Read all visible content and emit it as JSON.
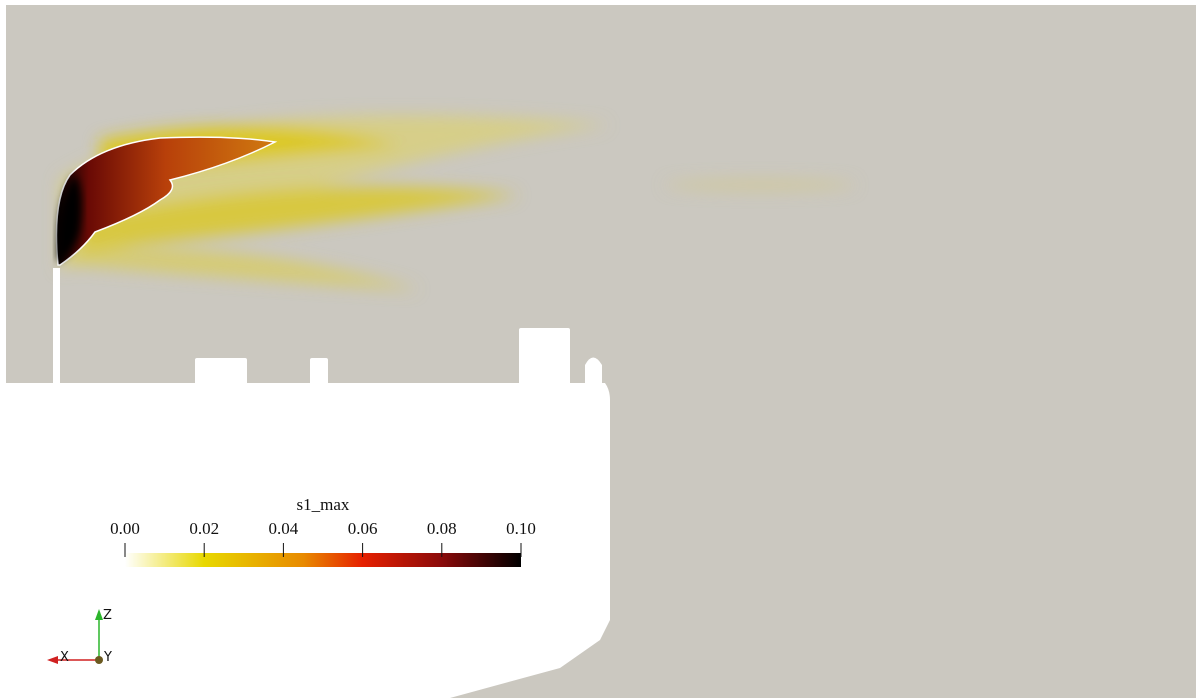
{
  "colorbar": {
    "title": "s1_max",
    "range": [
      0,
      0.1
    ],
    "ticks": [
      {
        "value": 0,
        "label": "0.00"
      },
      {
        "value": 0.02,
        "label": "0.02"
      },
      {
        "value": 0.04,
        "label": "0.04"
      },
      {
        "value": 0.06,
        "label": "0.06"
      },
      {
        "value": 0.08,
        "label": "0.08"
      },
      {
        "value": 0.1,
        "label": "0.10"
      }
    ]
  },
  "axes": {
    "x": "X",
    "y": "Y",
    "z": "Z"
  }
}
